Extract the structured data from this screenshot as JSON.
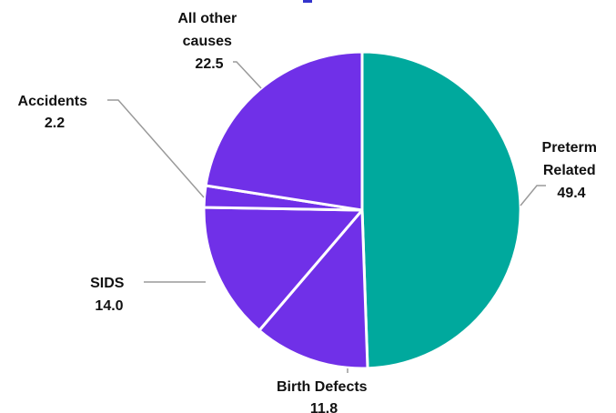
{
  "chart_data": {
    "type": "pie",
    "title": "",
    "start_angle_deg": 0,
    "direction": "clockwise",
    "slices": [
      {
        "label_lines": [
          "Preterm",
          "Related"
        ],
        "value": 49.4,
        "value_label": "49.4",
        "color": "#00a99d"
      },
      {
        "label_lines": [
          "Birth Defects"
        ],
        "value": 11.8,
        "value_label": "11.8",
        "color": "#7030e8"
      },
      {
        "label_lines": [
          "SIDS"
        ],
        "value": 14.0,
        "value_label": "14.0",
        "color": "#7030e8"
      },
      {
        "label_lines": [
          "Accidents"
        ],
        "value": 2.2,
        "value_label": "2.2",
        "color": "#7030e8"
      },
      {
        "label_lines": [
          "All other",
          "causes"
        ],
        "value": 22.5,
        "value_label": "22.5",
        "color": "#7030e8"
      }
    ],
    "leader_color": "#9a9a9a",
    "separator_color": "#ffffff"
  }
}
